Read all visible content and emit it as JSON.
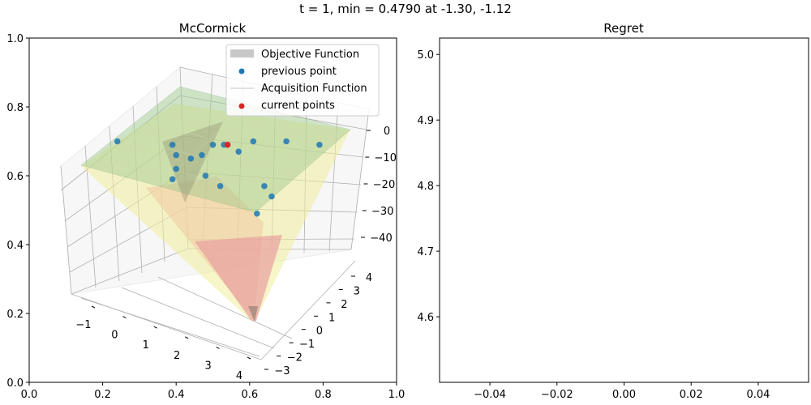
{
  "suptitle": "t = 1, min = 0.4790 at -1.30, -1.12",
  "colors": {
    "objective_surface": "#9dc98d",
    "acquisition_high": "#f0ee9a",
    "acquisition_low": "#e8a0a0",
    "previous_point": "#1f77b4",
    "current_point": "#d62728",
    "legend_objective_patch": "#c8c8c8",
    "legend_acquisition_line": "#d0d0d0"
  },
  "chart_data": [
    {
      "type": "scatter",
      "title": "McCormick",
      "legend_placement": "top-right",
      "legend": [
        "Objective Function",
        "previous point",
        "Acquisition Function",
        "current points"
      ],
      "axes2d": {
        "xlim": [
          0.0,
          1.0
        ],
        "ylim": [
          0.0,
          1.0
        ],
        "x_ticks": [
          "0.0",
          "0.2",
          "0.4",
          "0.6",
          "0.8",
          "1.0"
        ],
        "y_ticks": [
          "0.0",
          "0.2",
          "0.4",
          "0.6",
          "0.8",
          "1.0"
        ]
      },
      "axes3d": {
        "x_ticks": [
          "−1",
          "0",
          "1",
          "2",
          "3",
          "4"
        ],
        "y_ticks": [
          "−3",
          "−2",
          "−1",
          "0",
          "1",
          "2",
          "3",
          "4"
        ],
        "z_ticks": [
          "0",
          "−10",
          "−20",
          "−30",
          "−40"
        ]
      },
      "series": [
        {
          "name": "previous point",
          "points": [
            {
              "x": 0.24,
              "y": 0.7
            },
            {
              "x": 0.39,
              "y": 0.69
            },
            {
              "x": 0.4,
              "y": 0.66
            },
            {
              "x": 0.44,
              "y": 0.65
            },
            {
              "x": 0.47,
              "y": 0.66
            },
            {
              "x": 0.5,
              "y": 0.69
            },
            {
              "x": 0.53,
              "y": 0.69
            },
            {
              "x": 0.57,
              "y": 0.67
            },
            {
              "x": 0.61,
              "y": 0.7
            },
            {
              "x": 0.7,
              "y": 0.7
            },
            {
              "x": 0.79,
              "y": 0.69
            },
            {
              "x": 0.4,
              "y": 0.62
            },
            {
              "x": 0.39,
              "y": 0.59
            },
            {
              "x": 0.48,
              "y": 0.6
            },
            {
              "x": 0.52,
              "y": 0.57
            },
            {
              "x": 0.64,
              "y": 0.57
            },
            {
              "x": 0.66,
              "y": 0.54
            },
            {
              "x": 0.62,
              "y": 0.49
            }
          ]
        },
        {
          "name": "current points",
          "points": [
            {
              "x": 0.54,
              "y": 0.69
            }
          ]
        }
      ]
    },
    {
      "type": "line",
      "title": "Regret",
      "x_ticks": [
        "−0.04",
        "−0.02",
        "0.00",
        "0.02",
        "0.04"
      ],
      "y_ticks": [
        "4.6",
        "4.7",
        "4.8",
        "4.9",
        "5.0"
      ],
      "xlim": [
        -0.055,
        0.055
      ],
      "ylim": [
        4.5,
        5.025
      ],
      "series": []
    }
  ]
}
